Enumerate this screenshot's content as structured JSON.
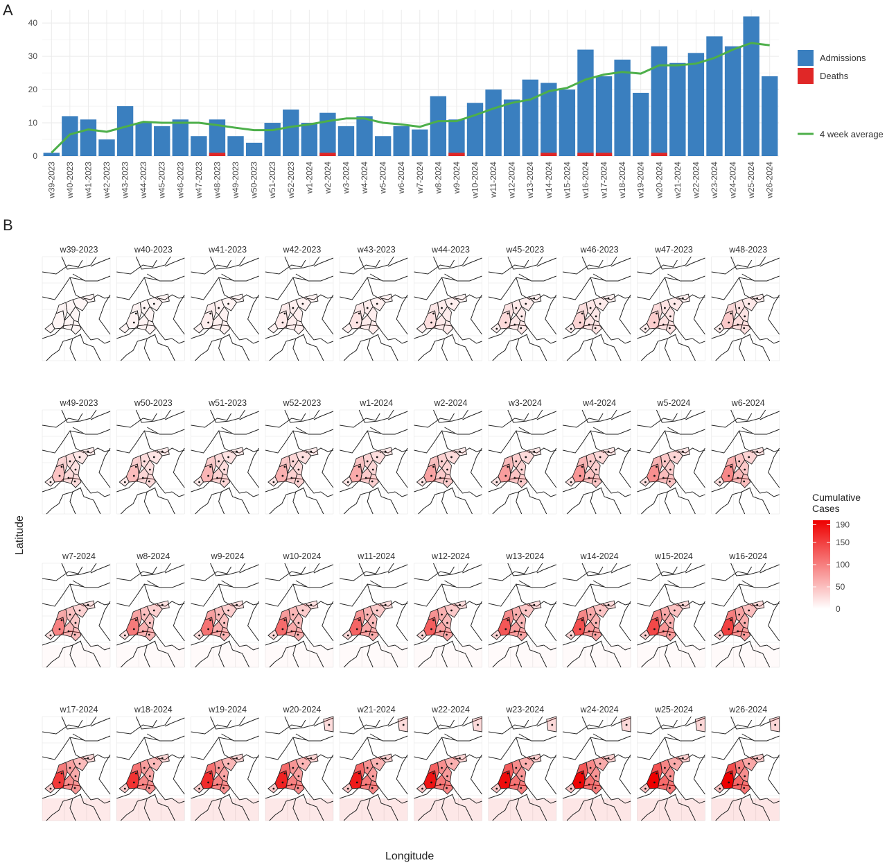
{
  "panels": {
    "a": "A",
    "b": "B"
  },
  "colors": {
    "admissions": "#3a7fbf",
    "deaths": "#e02727",
    "average": "#4daf4a",
    "map_low": "#ffffff",
    "map_high": "#ee0000",
    "grid": "#ebebeb"
  },
  "chart_data": [
    {
      "type": "bar",
      "categories": [
        "w39-2023",
        "w40-2023",
        "w41-2023",
        "w42-2023",
        "w43-2023",
        "w44-2023",
        "w45-2023",
        "w46-2023",
        "w47-2023",
        "w48-2023",
        "w49-2023",
        "w50-2023",
        "w51-2023",
        "w52-2023",
        "w1-2024",
        "w2-2024",
        "w3-2024",
        "w4-2024",
        "w5-2024",
        "w6-2024",
        "w7-2024",
        "w8-2024",
        "w9-2024",
        "w10-2024",
        "w11-2024",
        "w12-2024",
        "w13-2024",
        "w14-2024",
        "w15-2024",
        "w16-2024",
        "w17-2024",
        "w18-2024",
        "w19-2024",
        "w20-2024",
        "w21-2024",
        "w22-2024",
        "w23-2024",
        "w24-2024",
        "w25-2024",
        "w26-2024"
      ],
      "series": [
        {
          "name": "Admissions",
          "kind": "bar",
          "values": [
            1,
            12,
            11,
            5,
            15,
            10,
            9,
            11,
            6,
            11,
            6,
            4,
            10,
            14,
            10,
            13,
            9,
            12,
            6,
            9,
            8,
            18,
            11,
            16,
            20,
            17,
            23,
            22,
            20,
            32,
            24,
            29,
            19,
            33,
            28,
            31,
            36,
            33,
            42,
            24
          ]
        },
        {
          "name": "Deaths",
          "kind": "bar",
          "values": [
            0,
            0,
            0,
            0,
            0,
            0,
            0,
            0,
            0,
            1,
            0,
            0,
            0,
            0,
            0,
            1,
            0,
            0,
            0,
            0,
            0,
            0,
            1,
            0,
            0,
            0,
            0,
            1,
            0,
            1,
            1,
            0,
            0,
            1,
            0,
            0,
            0,
            0,
            0,
            0
          ]
        },
        {
          "name": "4 week average",
          "kind": "line",
          "values": [
            1,
            6.5,
            8,
            7.3,
            8.8,
            10.3,
            10,
            10,
            10,
            9.3,
            8.5,
            7.8,
            7.8,
            8.8,
            9.5,
            10.5,
            11.3,
            11.3,
            10,
            9.5,
            8.8,
            10.5,
            10.5,
            12.3,
            14.3,
            16,
            17,
            19.5,
            20.5,
            23,
            24.5,
            25.3,
            24.8,
            27.3,
            27.3,
            27.8,
            29.5,
            32,
            34,
            33.3
          ]
        }
      ],
      "ylim": [
        0,
        44
      ],
      "yticks": [
        0,
        10,
        20,
        30,
        40
      ],
      "xlabel": "",
      "ylabel": "",
      "grid": true,
      "legend_position": "right"
    },
    {
      "type": "heatmap",
      "ylabel": "Latitude",
      "xlabel": "Longitude",
      "facets": [
        "w39-2023",
        "w40-2023",
        "w41-2023",
        "w42-2023",
        "w43-2023",
        "w44-2023",
        "w45-2023",
        "w46-2023",
        "w47-2023",
        "w48-2023",
        "w49-2023",
        "w50-2023",
        "w51-2023",
        "w52-2023",
        "w1-2024",
        "w2-2024",
        "w3-2024",
        "w4-2024",
        "w5-2024",
        "w6-2024",
        "w7-2024",
        "w8-2024",
        "w9-2024",
        "w10-2024",
        "w11-2024",
        "w12-2024",
        "w13-2024",
        "w14-2024",
        "w15-2024",
        "w16-2024",
        "w17-2024",
        "w18-2024",
        "w19-2024",
        "w20-2024",
        "w21-2024",
        "w22-2024",
        "w23-2024",
        "w24-2024",
        "w25-2024",
        "w26-2024"
      ],
      "legend_title": "Cumulative\nCases",
      "colorbar_ticks": [
        0,
        50,
        100,
        150,
        190
      ],
      "colorbar_max": 200
    }
  ]
}
